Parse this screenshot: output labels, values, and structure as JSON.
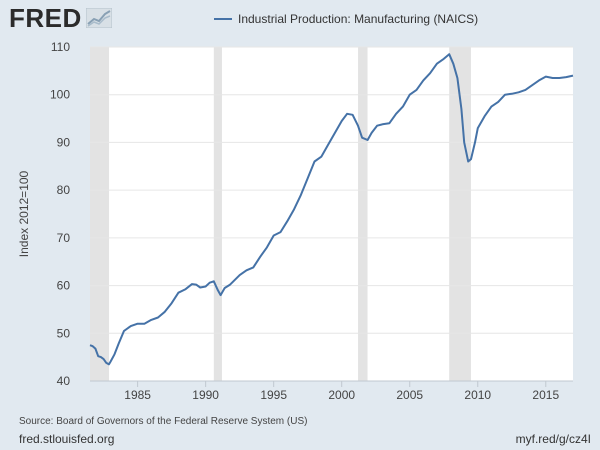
{
  "header": {
    "logo_text": "FRED",
    "logo_icon": "fred-graph-icon"
  },
  "legend": {
    "label": "Industrial Production: Manufacturing (NAICS)",
    "color": "#4572a7"
  },
  "footer": {
    "source": "Source: Board of Governors of the Federal Reserve System (US)",
    "site": "fred.stlouisfed.org",
    "shortlink": "myf.red/g/cz4I"
  },
  "chart_data": {
    "type": "line",
    "title": "",
    "xlabel": "",
    "ylabel": "Index 2012=100",
    "xlim": [
      1981.5,
      2017.0
    ],
    "ylim": [
      40,
      110
    ],
    "x_ticks": [
      1985,
      1990,
      1995,
      2000,
      2005,
      2010,
      2015
    ],
    "y_ticks": [
      40,
      50,
      60,
      70,
      80,
      90,
      100,
      110
    ],
    "grid": true,
    "recessions": [
      [
        1981.5,
        1982.9
      ],
      [
        1990.6,
        1991.2
      ],
      [
        2001.2,
        2001.9
      ],
      [
        2007.9,
        2009.5
      ]
    ],
    "series": [
      {
        "name": "Industrial Production: Manufacturing (NAICS)",
        "color": "#4572a7",
        "x": [
          1981.5,
          1981.7,
          1981.9,
          1982.1,
          1982.3,
          1982.5,
          1982.7,
          1982.9,
          1983.0,
          1983.3,
          1983.6,
          1984.0,
          1984.5,
          1985.0,
          1985.5,
          1986.0,
          1986.5,
          1987.0,
          1987.5,
          1988.0,
          1988.5,
          1989.0,
          1989.3,
          1989.6,
          1990.0,
          1990.3,
          1990.6,
          1990.9,
          1991.1,
          1991.4,
          1991.8,
          1992.0,
          1992.5,
          1993.0,
          1993.5,
          1994.0,
          1994.5,
          1995.0,
          1995.5,
          1996.0,
          1996.5,
          1997.0,
          1997.5,
          1998.0,
          1998.5,
          1999.0,
          1999.5,
          2000.0,
          2000.4,
          2000.8,
          2001.2,
          2001.5,
          2001.9,
          2002.2,
          2002.6,
          2003.0,
          2003.5,
          2004.0,
          2004.5,
          2005.0,
          2005.5,
          2006.0,
          2006.5,
          2007.0,
          2007.5,
          2007.9,
          2008.2,
          2008.5,
          2008.8,
          2009.0,
          2009.3,
          2009.5,
          2009.8,
          2010.0,
          2010.5,
          2011.0,
          2011.5,
          2012.0,
          2012.5,
          2013.0,
          2013.5,
          2014.0,
          2014.5,
          2015.0,
          2015.5,
          2016.0,
          2016.5,
          2017.0
        ],
        "values": [
          47.5,
          47.3,
          46.8,
          45.2,
          45.0,
          44.6,
          43.8,
          43.5,
          44.0,
          45.6,
          47.8,
          50.5,
          51.5,
          52.0,
          52.0,
          52.8,
          53.3,
          54.5,
          56.3,
          58.5,
          59.2,
          60.3,
          60.2,
          59.6,
          59.8,
          60.6,
          60.9,
          59.0,
          58.0,
          59.5,
          60.2,
          60.8,
          62.2,
          63.2,
          63.8,
          66.0,
          68.0,
          70.5,
          71.2,
          73.5,
          76.0,
          79.0,
          82.5,
          86.0,
          87.0,
          89.5,
          92.0,
          94.5,
          96.0,
          95.8,
          93.5,
          91.0,
          90.5,
          92.0,
          93.5,
          93.8,
          94.0,
          96.0,
          97.5,
          100.0,
          101.0,
          103.0,
          104.5,
          106.5,
          107.5,
          108.5,
          106.5,
          103.5,
          97.0,
          90.0,
          86.0,
          86.5,
          90.0,
          93.0,
          95.5,
          97.5,
          98.5,
          100.0,
          100.2,
          100.5,
          101.0,
          102.0,
          103.0,
          103.8,
          103.5,
          103.5,
          103.7,
          104.0
        ]
      }
    ]
  }
}
